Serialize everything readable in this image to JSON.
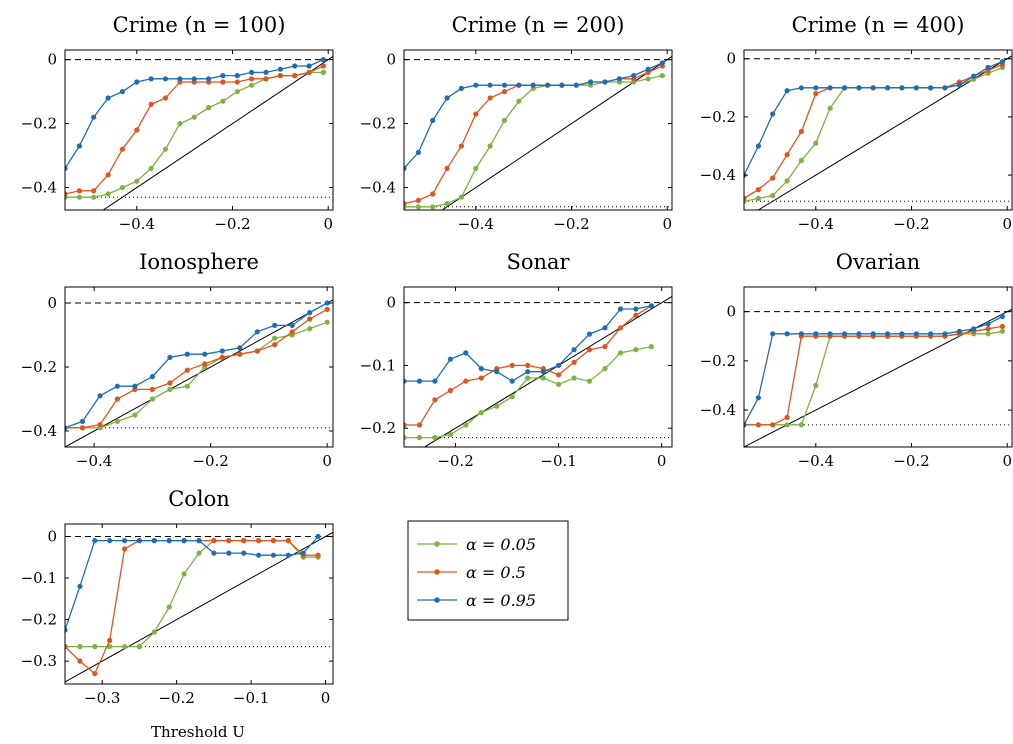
{
  "chart_data": [
    {
      "type": "line",
      "title": "Crime (n = 100)",
      "xlim": [
        -0.55,
        0.01
      ],
      "ylim": [
        -0.47,
        0.03
      ],
      "xticks": [
        "−0.4",
        "−0.2",
        "0"
      ],
      "xtick_values": [
        -0.4,
        -0.2,
        0
      ],
      "yticks": [
        "0",
        "−0.2",
        "−0.4"
      ],
      "ytick_values": [
        0,
        -0.2,
        -0.4
      ],
      "floor": -0.43,
      "x": [
        -0.55,
        -0.52,
        -0.49,
        -0.46,
        -0.43,
        -0.4,
        -0.37,
        -0.34,
        -0.31,
        -0.28,
        -0.25,
        -0.22,
        -0.19,
        -0.16,
        -0.13,
        -0.1,
        -0.07,
        -0.04,
        -0.01
      ],
      "series": [
        {
          "name": "α = 0.05",
          "color": "#7cb342",
          "values": [
            -0.43,
            -0.43,
            -0.43,
            -0.42,
            -0.4,
            -0.38,
            -0.34,
            -0.28,
            -0.2,
            -0.18,
            -0.15,
            -0.13,
            -0.1,
            -0.08,
            -0.06,
            -0.05,
            -0.05,
            -0.04,
            -0.04
          ]
        },
        {
          "name": "α = 0.5",
          "color": "#e0541d",
          "values": [
            -0.42,
            -0.41,
            -0.41,
            -0.36,
            -0.28,
            -0.22,
            -0.14,
            -0.12,
            -0.07,
            -0.07,
            -0.07,
            -0.07,
            -0.07,
            -0.06,
            -0.06,
            -0.05,
            -0.05,
            -0.04,
            -0.02
          ]
        },
        {
          "name": "α = 0.95",
          "color": "#1f6eb4",
          "values": [
            -0.34,
            -0.27,
            -0.18,
            -0.12,
            -0.1,
            -0.07,
            -0.06,
            -0.06,
            -0.06,
            -0.06,
            -0.06,
            -0.05,
            -0.05,
            -0.04,
            -0.04,
            -0.03,
            -0.02,
            -0.02,
            0.0
          ]
        }
      ]
    },
    {
      "type": "line",
      "title": "Crime (n = 200)",
      "xlim": [
        -0.55,
        0.01
      ],
      "ylim": [
        -0.47,
        0.03
      ],
      "xticks": [
        "−0.4",
        "−0.2",
        "0"
      ],
      "xtick_values": [
        -0.4,
        -0.2,
        0
      ],
      "yticks": [
        "0",
        "−0.2",
        "−0.4"
      ],
      "ytick_values": [
        0,
        -0.2,
        -0.4
      ],
      "floor": -0.46,
      "x": [
        -0.55,
        -0.52,
        -0.49,
        -0.46,
        -0.43,
        -0.4,
        -0.37,
        -0.34,
        -0.31,
        -0.28,
        -0.25,
        -0.22,
        -0.19,
        -0.16,
        -0.13,
        -0.1,
        -0.07,
        -0.04,
        -0.01
      ],
      "series": [
        {
          "name": "α = 0.05",
          "color": "#7cb342",
          "values": [
            -0.46,
            -0.46,
            -0.46,
            -0.45,
            -0.43,
            -0.34,
            -0.27,
            -0.19,
            -0.13,
            -0.09,
            -0.08,
            -0.08,
            -0.08,
            -0.08,
            -0.07,
            -0.07,
            -0.07,
            -0.06,
            -0.05
          ]
        },
        {
          "name": "α = 0.5",
          "color": "#e0541d",
          "values": [
            -0.45,
            -0.44,
            -0.42,
            -0.34,
            -0.27,
            -0.17,
            -0.12,
            -0.1,
            -0.08,
            -0.08,
            -0.08,
            -0.08,
            -0.08,
            -0.07,
            -0.07,
            -0.06,
            -0.06,
            -0.04,
            -0.02
          ]
        },
        {
          "name": "α = 0.95",
          "color": "#1f6eb4",
          "values": [
            -0.34,
            -0.29,
            -0.19,
            -0.12,
            -0.09,
            -0.08,
            -0.08,
            -0.08,
            -0.08,
            -0.08,
            -0.08,
            -0.08,
            -0.08,
            -0.07,
            -0.07,
            -0.06,
            -0.05,
            -0.03,
            -0.01
          ]
        }
      ]
    },
    {
      "type": "line",
      "title": "Crime (n = 400)",
      "xlim": [
        -0.55,
        0.01
      ],
      "ylim": [
        -0.52,
        0.03
      ],
      "xticks": [
        "−0.4",
        "−0.2",
        "0"
      ],
      "xtick_values": [
        -0.4,
        -0.2,
        0
      ],
      "yticks": [
        "0",
        "−0.2",
        "−0.4"
      ],
      "ytick_values": [
        0,
        -0.2,
        -0.4
      ],
      "floor": -0.49,
      "x": [
        -0.55,
        -0.52,
        -0.49,
        -0.46,
        -0.43,
        -0.4,
        -0.37,
        -0.34,
        -0.31,
        -0.28,
        -0.25,
        -0.22,
        -0.19,
        -0.16,
        -0.13,
        -0.1,
        -0.07,
        -0.04,
        -0.01
      ],
      "series": [
        {
          "name": "α = 0.05",
          "color": "#7cb342",
          "values": [
            -0.49,
            -0.48,
            -0.47,
            -0.42,
            -0.35,
            -0.29,
            -0.17,
            -0.1,
            -0.1,
            -0.1,
            -0.1,
            -0.1,
            -0.1,
            -0.1,
            -0.1,
            -0.09,
            -0.07,
            -0.05,
            -0.03
          ]
        },
        {
          "name": "α = 0.5",
          "color": "#e0541d",
          "values": [
            -0.48,
            -0.45,
            -0.41,
            -0.33,
            -0.25,
            -0.12,
            -0.1,
            -0.1,
            -0.1,
            -0.1,
            -0.1,
            -0.1,
            -0.1,
            -0.1,
            -0.1,
            -0.08,
            -0.06,
            -0.04,
            -0.02
          ]
        },
        {
          "name": "α = 0.95",
          "color": "#1f6eb4",
          "values": [
            -0.4,
            -0.3,
            -0.19,
            -0.11,
            -0.1,
            -0.1,
            -0.1,
            -0.1,
            -0.1,
            -0.1,
            -0.1,
            -0.1,
            -0.1,
            -0.1,
            -0.1,
            -0.09,
            -0.06,
            -0.03,
            -0.01
          ]
        }
      ]
    },
    {
      "type": "line",
      "title": "Ionosphere",
      "xlim": [
        -0.45,
        0.01
      ],
      "ylim": [
        -0.45,
        0.05
      ],
      "xticks": [
        "−0.4",
        "−0.2",
        "0"
      ],
      "xtick_values": [
        -0.4,
        -0.2,
        0
      ],
      "yticks": [
        "0",
        "−0.2",
        "−0.4"
      ],
      "ytick_values": [
        0,
        -0.2,
        -0.4
      ],
      "floor": -0.39,
      "x": [
        -0.45,
        -0.42,
        -0.39,
        -0.36,
        -0.33,
        -0.3,
        -0.27,
        -0.24,
        -0.21,
        -0.18,
        -0.15,
        -0.12,
        -0.09,
        -0.06,
        -0.03,
        0.0
      ],
      "series": [
        {
          "name": "α = 0.05",
          "color": "#7cb342",
          "values": [
            -0.39,
            -0.39,
            -0.39,
            -0.37,
            -0.35,
            -0.3,
            -0.27,
            -0.26,
            -0.2,
            -0.17,
            -0.16,
            -0.15,
            -0.11,
            -0.1,
            -0.08,
            -0.06
          ]
        },
        {
          "name": "α = 0.5",
          "color": "#e0541d",
          "values": [
            -0.39,
            -0.39,
            -0.38,
            -0.3,
            -0.27,
            -0.27,
            -0.25,
            -0.21,
            -0.19,
            -0.17,
            -0.16,
            -0.15,
            -0.13,
            -0.09,
            -0.05,
            -0.02
          ]
        },
        {
          "name": "α = 0.95",
          "color": "#1f6eb4",
          "values": [
            -0.39,
            -0.37,
            -0.29,
            -0.26,
            -0.26,
            -0.23,
            -0.17,
            -0.16,
            -0.16,
            -0.15,
            -0.14,
            -0.09,
            -0.07,
            -0.07,
            -0.03,
            0.0
          ]
        }
      ]
    },
    {
      "type": "line",
      "title": "Sonar",
      "xlim": [
        -0.25,
        0.01
      ],
      "ylim": [
        -0.23,
        0.025
      ],
      "xticks": [
        "−0.2",
        "−0.1",
        "0"
      ],
      "xtick_values": [
        -0.2,
        -0.1,
        0
      ],
      "yticks": [
        "0",
        "−0.1",
        "−0.2"
      ],
      "ytick_values": [
        0,
        -0.1,
        -0.2
      ],
      "floor": -0.215,
      "x": [
        -0.25,
        -0.235,
        -0.22,
        -0.205,
        -0.19,
        -0.175,
        -0.16,
        -0.145,
        -0.13,
        -0.115,
        -0.1,
        -0.085,
        -0.07,
        -0.055,
        -0.04,
        -0.025,
        -0.01
      ],
      "series": [
        {
          "name": "α = 0.05",
          "color": "#7cb342",
          "values": [
            -0.215,
            -0.215,
            -0.215,
            -0.21,
            -0.195,
            -0.175,
            -0.165,
            -0.15,
            -0.12,
            -0.12,
            -0.13,
            -0.12,
            -0.125,
            -0.105,
            -0.08,
            -0.075,
            -0.07
          ]
        },
        {
          "name": "α = 0.5",
          "color": "#e0541d",
          "values": [
            -0.195,
            -0.195,
            -0.155,
            -0.14,
            -0.125,
            -0.12,
            -0.105,
            -0.1,
            -0.1,
            -0.105,
            -0.115,
            -0.095,
            -0.075,
            -0.07,
            -0.04,
            -0.02,
            -0.005
          ]
        },
        {
          "name": "α = 0.95",
          "color": "#1f6eb4",
          "values": [
            -0.125,
            -0.125,
            -0.125,
            -0.09,
            -0.08,
            -0.105,
            -0.11,
            -0.125,
            -0.11,
            -0.11,
            -0.1,
            -0.075,
            -0.05,
            -0.04,
            -0.01,
            -0.01,
            -0.005
          ]
        }
      ]
    },
    {
      "type": "line",
      "title": "Ovarian",
      "xlim": [
        -0.55,
        0.01
      ],
      "ylim": [
        -0.55,
        0.1
      ],
      "xticks": [
        "−0.4",
        "−0.2",
        "0"
      ],
      "xtick_values": [
        -0.4,
        -0.2,
        0
      ],
      "yticks": [
        "0",
        "−0.2",
        "−0.4"
      ],
      "ytick_values": [
        0,
        -0.2,
        -0.4
      ],
      "floor": -0.46,
      "x": [
        -0.55,
        -0.52,
        -0.49,
        -0.46,
        -0.43,
        -0.4,
        -0.37,
        -0.34,
        -0.31,
        -0.28,
        -0.25,
        -0.22,
        -0.19,
        -0.16,
        -0.13,
        -0.1,
        -0.07,
        -0.04,
        -0.01
      ],
      "series": [
        {
          "name": "α = 0.05",
          "color": "#7cb342",
          "values": [
            -0.46,
            -0.46,
            -0.46,
            -0.46,
            -0.46,
            -0.3,
            -0.1,
            -0.1,
            -0.1,
            -0.1,
            -0.1,
            -0.1,
            -0.1,
            -0.1,
            -0.1,
            -0.09,
            -0.09,
            -0.09,
            -0.08
          ]
        },
        {
          "name": "α = 0.5",
          "color": "#e0541d",
          "values": [
            -0.46,
            -0.46,
            -0.46,
            -0.43,
            -0.1,
            -0.1,
            -0.1,
            -0.1,
            -0.1,
            -0.1,
            -0.1,
            -0.1,
            -0.1,
            -0.1,
            -0.1,
            -0.09,
            -0.08,
            -0.07,
            -0.06
          ]
        },
        {
          "name": "α = 0.95",
          "color": "#1f6eb4",
          "values": [
            -0.46,
            -0.35,
            -0.09,
            -0.09,
            -0.09,
            -0.09,
            -0.09,
            -0.09,
            -0.09,
            -0.09,
            -0.09,
            -0.09,
            -0.09,
            -0.09,
            -0.09,
            -0.08,
            -0.07,
            -0.05,
            -0.02
          ]
        }
      ]
    },
    {
      "type": "line",
      "title": "Colon",
      "xlim": [
        -0.35,
        0.01
      ],
      "ylim": [
        -0.355,
        0.03
      ],
      "xticks": [
        "−0.3",
        "−0.2",
        "−0.1",
        "0"
      ],
      "xtick_values": [
        -0.3,
        -0.2,
        -0.1,
        0
      ],
      "yticks": [
        "0",
        "−0.1",
        "−0.2",
        "−0.3"
      ],
      "ytick_values": [
        0,
        -0.1,
        -0.2,
        -0.3
      ],
      "floor": -0.265,
      "x": [
        -0.35,
        -0.33,
        -0.31,
        -0.29,
        -0.27,
        -0.25,
        -0.23,
        -0.21,
        -0.19,
        -0.17,
        -0.15,
        -0.13,
        -0.11,
        -0.09,
        -0.07,
        -0.05,
        -0.03,
        -0.01
      ],
      "series": [
        {
          "name": "α = 0.05",
          "color": "#7cb342",
          "values": [
            -0.265,
            -0.265,
            -0.265,
            -0.265,
            -0.265,
            -0.265,
            -0.23,
            -0.17,
            -0.09,
            -0.04,
            -0.01,
            -0.01,
            -0.01,
            -0.01,
            -0.01,
            -0.01,
            -0.05,
            -0.05
          ]
        },
        {
          "name": "α = 0.5",
          "color": "#e0541d",
          "values": [
            -0.265,
            -0.3,
            -0.33,
            -0.25,
            -0.03,
            -0.01,
            -0.01,
            -0.01,
            -0.01,
            -0.01,
            -0.01,
            -0.01,
            -0.01,
            -0.01,
            -0.01,
            -0.01,
            -0.045,
            -0.045
          ]
        },
        {
          "name": "α = 0.95",
          "color": "#1f6eb4",
          "values": [
            -0.225,
            -0.12,
            -0.01,
            -0.01,
            -0.01,
            -0.01,
            -0.01,
            -0.01,
            -0.01,
            -0.01,
            -0.04,
            -0.04,
            -0.04,
            -0.045,
            -0.045,
            -0.045,
            -0.04,
            0.0
          ]
        }
      ]
    }
  ],
  "legend": [
    {
      "label": "α = 0.05",
      "color": "#7cb342"
    },
    {
      "label": "α = 0.5",
      "color": "#e0541d"
    },
    {
      "label": "α = 0.95",
      "color": "#1f6eb4"
    }
  ],
  "xlabel": "Threshold U"
}
